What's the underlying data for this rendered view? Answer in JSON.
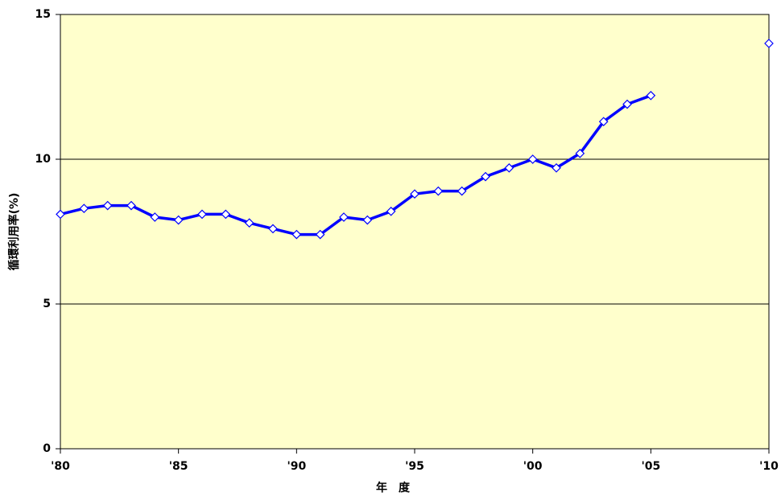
{
  "chart_data": {
    "type": "line",
    "x_label": "年　度",
    "y_label": "循環利用率(%)",
    "x": [
      1980,
      1981,
      1982,
      1983,
      1984,
      1985,
      1986,
      1987,
      1988,
      1989,
      1990,
      1991,
      1992,
      1993,
      1994,
      1995,
      1996,
      1997,
      1998,
      1999,
      2000,
      2001,
      2002,
      2003,
      2004,
      2005,
      2010
    ],
    "series": [
      {
        "color": "#0000ff",
        "line": true,
        "values": [
          8.1,
          8.3,
          8.4,
          8.4,
          8.0,
          7.9,
          8.1,
          8.1,
          7.8,
          7.6,
          7.4,
          7.4,
          8.0,
          7.9,
          8.2,
          8.8,
          8.9,
          8.9,
          9.4,
          9.7,
          10.0,
          9.7,
          10.2,
          11.3,
          11.9,
          12.2,
          null
        ]
      },
      {
        "color": "#0000ff",
        "line": false,
        "values": [
          null,
          null,
          null,
          null,
          null,
          null,
          null,
          null,
          null,
          null,
          null,
          null,
          null,
          null,
          null,
          null,
          null,
          null,
          null,
          null,
          null,
          null,
          null,
          null,
          null,
          null,
          14.0
        ]
      }
    ],
    "xlim": [
      1980,
      2010
    ],
    "xticks": [
      {
        "value": 1980,
        "label": "'80"
      },
      {
        "value": 1985,
        "label": "'85"
      },
      {
        "value": 1990,
        "label": "'90"
      },
      {
        "value": 1995,
        "label": "'95"
      },
      {
        "value": 2000,
        "label": "'00"
      },
      {
        "value": 2005,
        "label": "'05"
      },
      {
        "value": 2010,
        "label": "'10"
      }
    ],
    "ylim": [
      0,
      15
    ],
    "yticks": [
      0,
      5,
      10,
      15
    ],
    "grid": true,
    "background": "#ffffcc"
  }
}
